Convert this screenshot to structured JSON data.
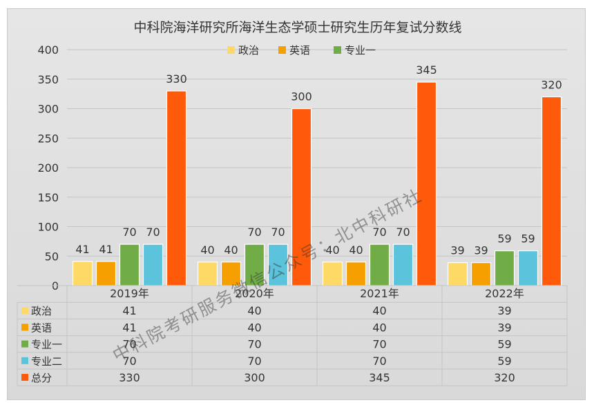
{
  "chart_data": {
    "type": "bar",
    "title": "中科院海洋研究所海洋生态学硕士研究生历年复试分数线",
    "categories": [
      "2019年",
      "2020年",
      "2021年",
      "2022年"
    ],
    "ylim": [
      0,
      400
    ],
    "yticks": [
      "0",
      "50",
      "100",
      "150",
      "200",
      "250",
      "300",
      "350",
      "400"
    ],
    "grid": true,
    "legend_position": "top",
    "legend_series": [
      "政治",
      "英语",
      "专业一"
    ],
    "series": [
      {
        "name": "政治",
        "color": "#FFD966",
        "values": [
          41,
          40,
          40,
          39
        ],
        "labels": [
          "41",
          "40",
          "40",
          "39"
        ]
      },
      {
        "name": "英语",
        "color": "#F5A000",
        "values": [
          41,
          40,
          40,
          39
        ],
        "labels": [
          "41",
          "40",
          "40",
          "39"
        ]
      },
      {
        "name": "专业一",
        "color": "#70AD47",
        "values": [
          70,
          70,
          70,
          59
        ],
        "labels": [
          "70",
          "70",
          "70",
          "59"
        ]
      },
      {
        "name": "专业二",
        "color": "#5BC4DC",
        "values": [
          70,
          70,
          70,
          59
        ],
        "labels": [
          "70",
          "70",
          "70",
          "59"
        ]
      },
      {
        "name": "总分",
        "color": "#FF5A0A",
        "values": [
          330,
          300,
          345,
          320
        ],
        "labels": [
          "330",
          "300",
          "345",
          "320"
        ]
      }
    ],
    "table_row_order": [
      "政治",
      "英语",
      "专业一",
      "专业二",
      "总分"
    ],
    "watermark": "中科院考研服务微信公众号：北中科研社"
  }
}
